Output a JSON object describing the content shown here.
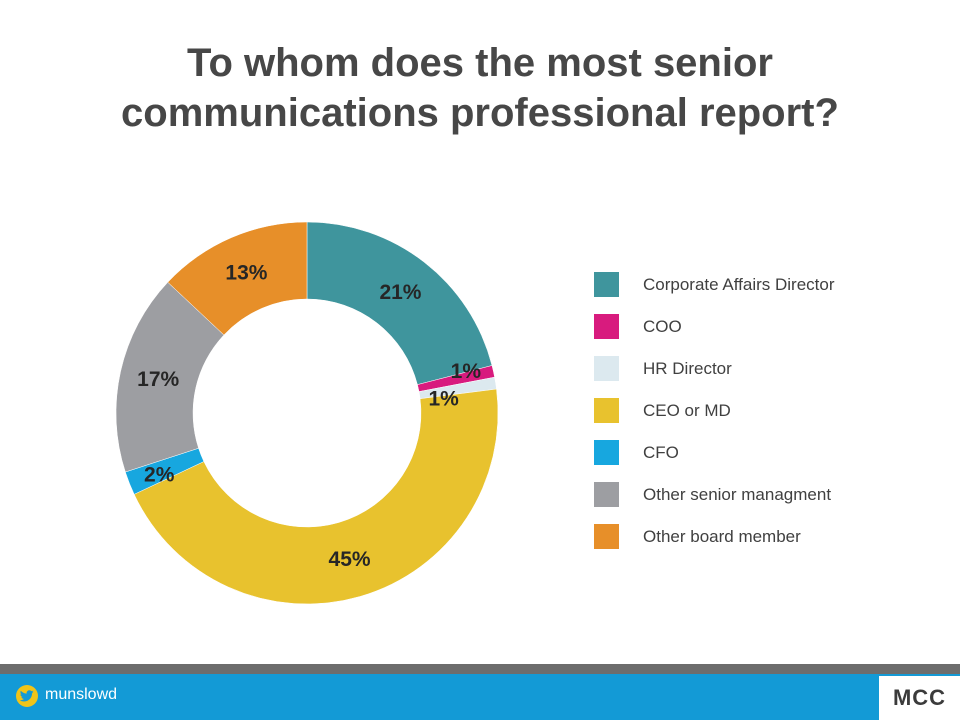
{
  "title": {
    "line1": "To whom does the most senior",
    "line2": "communications professional report?"
  },
  "chart_data": {
    "type": "pie",
    "style": "donut",
    "title": "To whom does the most senior communications professional report?",
    "legend_position": "right",
    "unit": "%",
    "categories": [
      "Corporate Affairs Director",
      "COO",
      "HR Director",
      "CEO or MD",
      "CFO",
      "Other senior managment",
      "Other board member"
    ],
    "values": [
      21,
      1,
      1,
      45,
      2,
      17,
      13
    ],
    "labels": [
      "21%",
      "1%",
      "1%",
      "45%",
      "2%",
      "17%",
      "13%"
    ],
    "colors": [
      "#3f959d",
      "#d81b7e",
      "#dce9ef",
      "#e8c22e",
      "#17a7df",
      "#9d9ea2",
      "#e78f29"
    ]
  },
  "footer": {
    "twitter_icon": "twitter-bird-icon",
    "handle": "munslowd",
    "logo": "MCC"
  }
}
